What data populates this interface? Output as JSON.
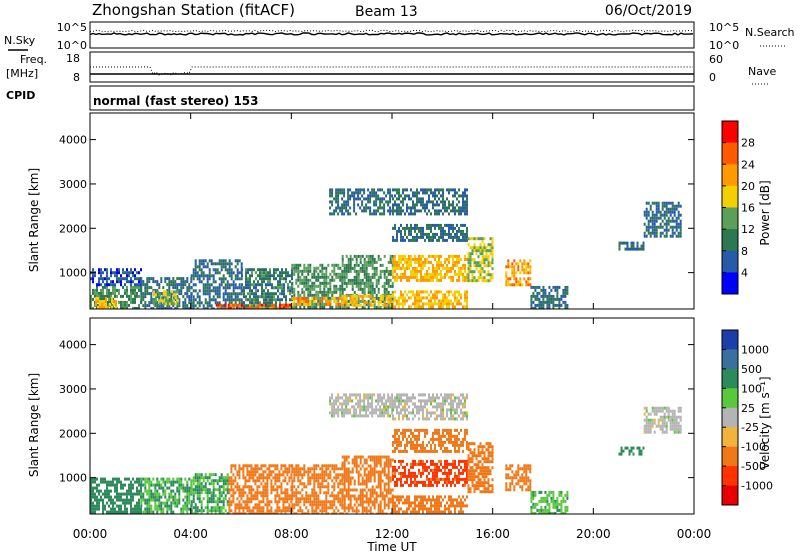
{
  "header": {
    "station": "Zhongshan Station (fitACF)",
    "beam": "Beam 13",
    "date": "06/Oct/2019"
  },
  "status_panels": {
    "nsky_label": "N.Sky",
    "nsky_ticks": [
      "10^5",
      "10^0"
    ],
    "nsearch_label": "N.Search",
    "nsearch_ticks": [
      "10^5",
      "10^0"
    ],
    "freq_label_1": "Freq.",
    "freq_label_2": "[MHz]",
    "freq_ticks": [
      "18",
      "8"
    ],
    "nave_label": "Nave",
    "nave_ticks": [
      "60",
      "0"
    ],
    "cpid_label": "CPID",
    "cpid_text": "normal (fast stereo) 153"
  },
  "axes": {
    "ylabel": "Slant Range [km]",
    "yticks": [
      "4000",
      "3000",
      "2000",
      "1000"
    ],
    "xticks": [
      "00:00",
      "04:00",
      "08:00",
      "12:00",
      "16:00",
      "20:00",
      "00:00"
    ],
    "xlabel": "Time UT"
  },
  "colorbars": {
    "power": {
      "label": "Power [dB]",
      "ticks": [
        "28",
        "24",
        "20",
        "16",
        "12",
        "8",
        "4"
      ],
      "colors": [
        "#ff0000",
        "#ff5a00",
        "#ff9b00",
        "#f5d000",
        "#5aa05a",
        "#2d7850",
        "#285aaa",
        "#0000ff"
      ]
    },
    "velocity": {
      "label": "Velocity [m s⁻¹]",
      "ticks": [
        "1000",
        "500",
        "100",
        "25",
        "-25",
        "-100",
        "-500",
        "-1000"
      ],
      "colors": [
        "#1b3fa8",
        "#3a6fa0",
        "#2d8a5a",
        "#59c83c",
        "#b4b4b4",
        "#f0b43c",
        "#f07818",
        "#ff3200",
        "#e60000"
      ]
    }
  },
  "chart_data": [
    {
      "type": "heatmap",
      "panel": "power",
      "x_range_hours": [
        0,
        24
      ],
      "y_range_km": [
        180,
        4600
      ],
      "colorscale": "power",
      "cells": [
        [
          0.0,
          2.0,
          180,
          700,
          12
        ],
        [
          0.0,
          2.0,
          700,
          1100,
          6
        ],
        [
          0.2,
          1.0,
          180,
          450,
          20
        ],
        [
          2.0,
          4.0,
          180,
          900,
          8
        ],
        [
          2.5,
          3.5,
          300,
          600,
          16
        ],
        [
          4.0,
          6.0,
          180,
          1300,
          8
        ],
        [
          5.0,
          6.0,
          180,
          300,
          26
        ],
        [
          6.0,
          8.0,
          180,
          1100,
          10
        ],
        [
          6.0,
          8.0,
          180,
          300,
          26
        ],
        [
          8.0,
          10.0,
          180,
          1200,
          12
        ],
        [
          8.0,
          10.0,
          250,
          450,
          22
        ],
        [
          10.0,
          12.0,
          180,
          1400,
          12
        ],
        [
          10.0,
          12.0,
          250,
          500,
          20
        ],
        [
          9.5,
          12.0,
          2350,
          2900,
          8
        ],
        [
          12.0,
          15.0,
          180,
          600,
          20
        ],
        [
          12.0,
          15.0,
          800,
          1400,
          20
        ],
        [
          12.0,
          15.0,
          1700,
          2100,
          8
        ],
        [
          12.0,
          15.0,
          2300,
          2900,
          8
        ],
        [
          15.0,
          16.0,
          800,
          1800,
          16
        ],
        [
          16.5,
          17.5,
          700,
          1300,
          22
        ],
        [
          17.5,
          19.0,
          180,
          700,
          8
        ],
        [
          21.0,
          22.0,
          1500,
          1700,
          8
        ],
        [
          22.0,
          23.5,
          1800,
          2600,
          8
        ]
      ]
    },
    {
      "type": "heatmap",
      "panel": "velocity",
      "x_range_hours": [
        0,
        24
      ],
      "y_range_km": [
        180,
        4600
      ],
      "colorscale": "velocity",
      "cells": [
        [
          0.0,
          2.0,
          180,
          1000,
          300
        ],
        [
          2.0,
          4.0,
          180,
          1000,
          100
        ],
        [
          4.0,
          5.5,
          180,
          1100,
          100
        ],
        [
          5.5,
          8.0,
          180,
          1300,
          -300
        ],
        [
          8.0,
          10.0,
          180,
          1300,
          -300
        ],
        [
          10.0,
          12.0,
          180,
          1500,
          -300
        ],
        [
          9.5,
          12.0,
          2400,
          2900,
          0
        ],
        [
          12.0,
          15.0,
          180,
          600,
          -300
        ],
        [
          12.0,
          15.0,
          800,
          1400,
          -700
        ],
        [
          12.0,
          15.0,
          1600,
          2100,
          -200
        ],
        [
          12.0,
          15.0,
          2300,
          2900,
          0
        ],
        [
          15.0,
          16.0,
          700,
          1800,
          -300
        ],
        [
          16.5,
          17.5,
          700,
          1300,
          -300
        ],
        [
          17.5,
          19.0,
          180,
          700,
          80
        ],
        [
          21.0,
          22.0,
          1500,
          1700,
          300
        ],
        [
          22.0,
          23.5,
          2000,
          2600,
          0
        ]
      ]
    }
  ]
}
